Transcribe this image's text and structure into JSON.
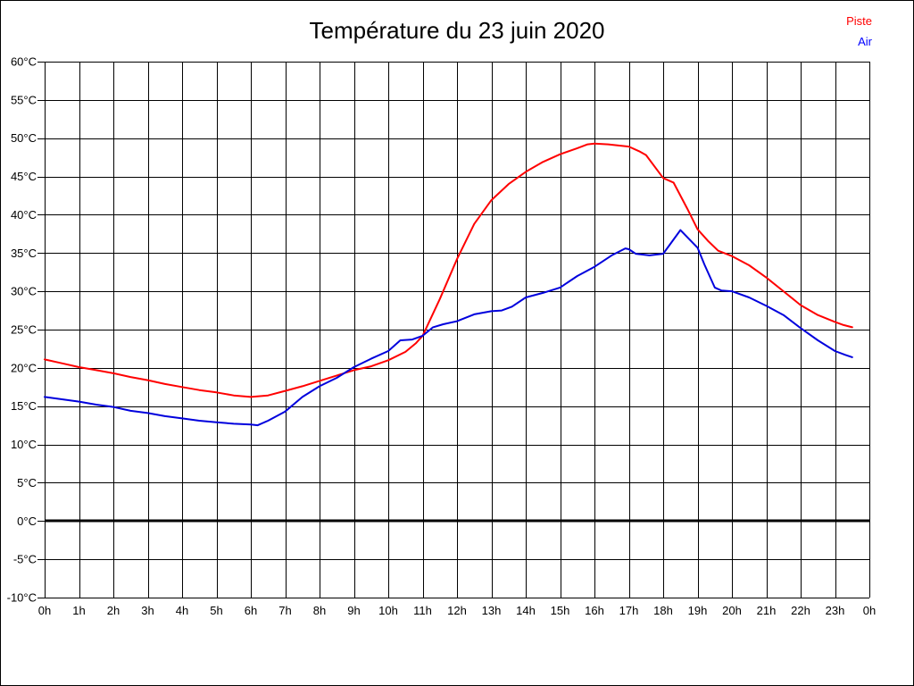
{
  "chart_data": {
    "type": "line",
    "title": "Température du 23 juin 2020",
    "xlabel": "",
    "ylabel": "",
    "xlim": [
      0,
      24
    ],
    "ylim": [
      -10,
      60
    ],
    "grid": true,
    "grid_color": "#000000",
    "background": "#ffffff",
    "zero_line_value": 0,
    "legend_position": "top-right",
    "x_tick_labels": [
      "0h",
      "1h",
      "2h",
      "3h",
      "4h",
      "5h",
      "6h",
      "7h",
      "8h",
      "9h",
      "10h",
      "11h",
      "12h",
      "13h",
      "14h",
      "15h",
      "16h",
      "17h",
      "18h",
      "19h",
      "20h",
      "21h",
      "22h",
      "23h",
      "0h"
    ],
    "y_tick_labels": [
      "60°C",
      "55°C",
      "50°C",
      "45°C",
      "40°C",
      "35°C",
      "30°C",
      "25°C",
      "20°C",
      "15°C",
      "10°C",
      "5°C",
      "0°C",
      "-5°C",
      "-10°C"
    ],
    "series": [
      {
        "name": "Piste",
        "color": "#ff0000",
        "points": [
          [
            0,
            21.1
          ],
          [
            0.5,
            20.6
          ],
          [
            1,
            20.1
          ],
          [
            1.5,
            19.7
          ],
          [
            2,
            19.3
          ],
          [
            2.5,
            18.8
          ],
          [
            3,
            18.4
          ],
          [
            3.5,
            17.9
          ],
          [
            4,
            17.5
          ],
          [
            4.5,
            17.1
          ],
          [
            5,
            16.8
          ],
          [
            5.5,
            16.4
          ],
          [
            6,
            16.2
          ],
          [
            6.5,
            16.4
          ],
          [
            7,
            17.0
          ],
          [
            7.5,
            17.6
          ],
          [
            8,
            18.3
          ],
          [
            8.5,
            19.0
          ],
          [
            9,
            19.7
          ],
          [
            9.5,
            20.2
          ],
          [
            10,
            21.0
          ],
          [
            10.5,
            22.1
          ],
          [
            10.8,
            23.2
          ],
          [
            11,
            24.2
          ],
          [
            11.5,
            29.0
          ],
          [
            12,
            34.2
          ],
          [
            12.5,
            38.8
          ],
          [
            13,
            41.9
          ],
          [
            13.5,
            44.0
          ],
          [
            14,
            45.6
          ],
          [
            14.5,
            46.9
          ],
          [
            15,
            47.9
          ],
          [
            15.5,
            48.7
          ],
          [
            15.8,
            49.2
          ],
          [
            16,
            49.3
          ],
          [
            16.4,
            49.2
          ],
          [
            17,
            48.9
          ],
          [
            17.3,
            48.3
          ],
          [
            17.5,
            47.8
          ],
          [
            18,
            44.8
          ],
          [
            18.3,
            44.2
          ],
          [
            18.7,
            40.8
          ],
          [
            19,
            38.1
          ],
          [
            19.3,
            36.6
          ],
          [
            19.6,
            35.3
          ],
          [
            20,
            34.6
          ],
          [
            20.5,
            33.4
          ],
          [
            21,
            31.8
          ],
          [
            21.5,
            30.0
          ],
          [
            22,
            28.2
          ],
          [
            22.5,
            26.9
          ],
          [
            23,
            26.0
          ],
          [
            23.25,
            25.6
          ],
          [
            23.5,
            25.3
          ]
        ]
      },
      {
        "name": "Air",
        "color": "#0000dd",
        "points": [
          [
            0,
            16.2
          ],
          [
            0.5,
            15.9
          ],
          [
            1,
            15.6
          ],
          [
            1.5,
            15.2
          ],
          [
            2,
            14.9
          ],
          [
            2.5,
            14.4
          ],
          [
            3,
            14.1
          ],
          [
            3.5,
            13.7
          ],
          [
            4,
            13.4
          ],
          [
            4.5,
            13.1
          ],
          [
            5,
            12.9
          ],
          [
            5.5,
            12.7
          ],
          [
            6,
            12.6
          ],
          [
            6.2,
            12.5
          ],
          [
            6.5,
            13.1
          ],
          [
            7,
            14.3
          ],
          [
            7.5,
            16.2
          ],
          [
            8,
            17.6
          ],
          [
            8.5,
            18.7
          ],
          [
            9,
            20.1
          ],
          [
            9.5,
            21.2
          ],
          [
            10,
            22.2
          ],
          [
            10.35,
            23.6
          ],
          [
            10.7,
            23.7
          ],
          [
            11,
            24.2
          ],
          [
            11.3,
            25.3
          ],
          [
            11.6,
            25.7
          ],
          [
            12,
            26.1
          ],
          [
            12.5,
            27.0
          ],
          [
            13,
            27.4
          ],
          [
            13.3,
            27.5
          ],
          [
            13.6,
            28.0
          ],
          [
            14,
            29.2
          ],
          [
            14.5,
            29.8
          ],
          [
            15,
            30.5
          ],
          [
            15.5,
            32.0
          ],
          [
            16,
            33.2
          ],
          [
            16.5,
            34.7
          ],
          [
            16.9,
            35.6
          ],
          [
            17,
            35.5
          ],
          [
            17.2,
            34.9
          ],
          [
            17.6,
            34.7
          ],
          [
            18,
            34.9
          ],
          [
            18.5,
            38.0
          ],
          [
            19,
            35.7
          ],
          [
            19.2,
            33.5
          ],
          [
            19.5,
            30.5
          ],
          [
            19.7,
            30.1
          ],
          [
            20,
            30.0
          ],
          [
            20.5,
            29.2
          ],
          [
            21,
            28.1
          ],
          [
            21.5,
            26.9
          ],
          [
            22,
            25.2
          ],
          [
            22.5,
            23.6
          ],
          [
            23,
            22.2
          ],
          [
            23.3,
            21.7
          ],
          [
            23.5,
            21.4
          ]
        ]
      }
    ]
  }
}
